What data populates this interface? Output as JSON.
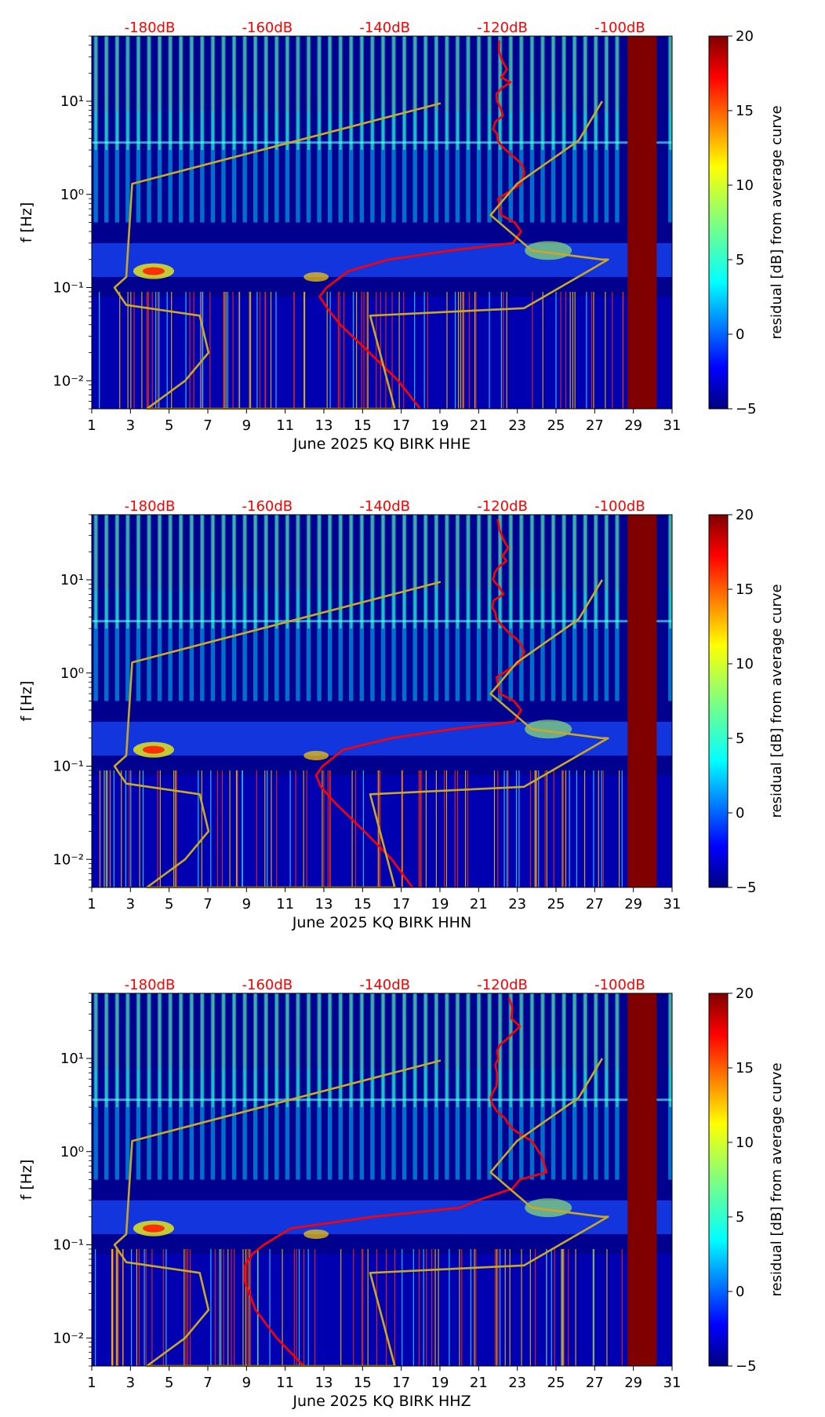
{
  "colors": {
    "psd_curve": "#ff0000",
    "reference_curve": "#c8a82a",
    "db_scale_text": "#ff0000",
    "gap_fill": "#800000"
  },
  "colorbar": {
    "label": "residual [dB] from average curve",
    "ticks": [
      20,
      15,
      10,
      5,
      0,
      -5
    ],
    "tick_labels": [
      "20",
      "15",
      "10",
      "5",
      "0",
      "−5"
    ],
    "range": [
      -5,
      20
    ],
    "colormap": "jet"
  },
  "panels": [
    {
      "xlabel": "June 2025 KQ BIRK  HHE",
      "ylabel": "f [Hz]",
      "x_ticks": [
        "1",
        "3",
        "5",
        "7",
        "9",
        "11",
        "13",
        "15",
        "17",
        "19",
        "21",
        "23",
        "25",
        "27",
        "29",
        "31"
      ],
      "y_tick_labels": [
        "10¹",
        "10⁰",
        "10⁻¹",
        "10⁻²"
      ],
      "db_labels": [
        "-180dB",
        "-160dB",
        "-140dB",
        "-120dB",
        "-100dB"
      ]
    },
    {
      "xlabel": "June 2025 KQ BIRK  HHN",
      "ylabel": "f [Hz]",
      "x_ticks": [
        "1",
        "3",
        "5",
        "7",
        "9",
        "11",
        "13",
        "15",
        "17",
        "19",
        "21",
        "23",
        "25",
        "27",
        "29",
        "31"
      ],
      "y_tick_labels": [
        "10¹",
        "10⁰",
        "10⁻¹",
        "10⁻²"
      ],
      "db_labels": [
        "-180dB",
        "-160dB",
        "-140dB",
        "-120dB",
        "-100dB"
      ]
    },
    {
      "xlabel": "June 2025 KQ BIRK  HHZ",
      "ylabel": "f [Hz]",
      "x_ticks": [
        "1",
        "3",
        "5",
        "7",
        "9",
        "11",
        "13",
        "15",
        "17",
        "19",
        "21",
        "23",
        "25",
        "27",
        "29",
        "31"
      ],
      "y_tick_labels": [
        "10¹",
        "10⁰",
        "10⁻¹",
        "10⁻²"
      ],
      "db_labels": [
        "-180dB",
        "-160dB",
        "-140dB",
        "-120dB",
        "-100dB"
      ]
    }
  ],
  "chart_data": [
    {
      "type": "heatmap",
      "title": "",
      "xlabel": "June 2025 KQ BIRK  HHE",
      "ylabel": "f [Hz]",
      "x_range_days": [
        1,
        31
      ],
      "y_range_hz": [
        0.005,
        50
      ],
      "y_scale": "log",
      "color_range_db": [
        -5,
        20
      ],
      "data_gap_days": [
        28.7,
        30.2
      ],
      "top_axis_db_labels": [
        "-180dB",
        "-160dB",
        "-140dB",
        "-120dB",
        "-100dB"
      ],
      "top_axis_db_values": [
        -180,
        -160,
        -140,
        -120,
        -100
      ],
      "psd_curve_red": {
        "db": [
          -120.5,
          -120.6,
          -120.0,
          -119.2,
          -120.2,
          -118.6,
          -120.0,
          -121.0,
          -120.9,
          -120.3,
          -119.9,
          -121.2,
          -121.6,
          -120.9,
          -120.8,
          -119.9,
          -118.6,
          -117.3,
          -116.5,
          -116.3,
          -116.8,
          -120.7,
          -120.2,
          -117.9,
          -116.8,
          -118.2,
          -128.7,
          -139.3,
          -146.2,
          -149.9,
          -151.1,
          -149.8,
          -147.6,
          -142.6,
          -137.7,
          -134.0
        ],
        "freq_hz": [
          45,
          35,
          27,
          22,
          18,
          16,
          14,
          12,
          10,
          8.5,
          7,
          6,
          5,
          4.5,
          3.8,
          3.2,
          2.7,
          2.3,
          2.0,
          1.7,
          1.3,
          0.9,
          0.6,
          0.5,
          0.4,
          0.3,
          0.25,
          0.2,
          0.15,
          0.1,
          0.08,
          0.06,
          0.04,
          0.02,
          0.01,
          0.005
        ]
      },
      "reference_curve_yellow": {
        "db": [
          -103.0,
          -107.0,
          -117.5,
          -122.0,
          -115.0,
          -103.0,
          -102.0,
          -116.3,
          -142.5,
          -138.3,
          -180.5,
          -174.0,
          -170.0,
          -171.5,
          -184.0,
          -186.0,
          -184.0,
          -183.0,
          -130.5
        ],
        "freq_hz": [
          10,
          3.8,
          1.3,
          0.6,
          0.25,
          0.2,
          0.2,
          0.06,
          0.05,
          0.005,
          0.005,
          0.01,
          0.02,
          0.05,
          0.065,
          0.1,
          0.13,
          1.3,
          9.5
        ]
      }
    },
    {
      "type": "heatmap",
      "title": "",
      "xlabel": "June 2025 KQ BIRK  HHN",
      "ylabel": "f [Hz]",
      "x_range_days": [
        1,
        31
      ],
      "y_range_hz": [
        0.005,
        50
      ],
      "y_scale": "log",
      "color_range_db": [
        -5,
        20
      ],
      "data_gap_days": [
        28.7,
        30.2
      ],
      "top_axis_db_labels": [
        "-180dB",
        "-160dB",
        "-140dB",
        "-120dB",
        "-100dB"
      ],
      "top_axis_db_values": [
        -180,
        -160,
        -140,
        -120,
        -100
      ],
      "psd_curve_red": {
        "db": [
          -120.8,
          -120.5,
          -119.8,
          -119.0,
          -120.0,
          -119.3,
          -120.5,
          -121.3,
          -121.6,
          -120.6,
          -119.8,
          -121.5,
          -121.7,
          -121.2,
          -121.0,
          -120.0,
          -118.9,
          -117.5,
          -116.8,
          -116.3,
          -117.0,
          -121.0,
          -120.4,
          -118.0,
          -116.8,
          -118.0,
          -128.4,
          -138.9,
          -147.1,
          -150.6,
          -151.7,
          -150.9,
          -148.4,
          -143.5,
          -138.8,
          -135.3
        ],
        "freq_hz": [
          45,
          35,
          27,
          22,
          18,
          16,
          14,
          12,
          10,
          8.5,
          7,
          6,
          5,
          4.5,
          3.8,
          3.2,
          2.7,
          2.3,
          2.0,
          1.7,
          1.3,
          0.9,
          0.6,
          0.5,
          0.4,
          0.3,
          0.25,
          0.2,
          0.15,
          0.1,
          0.08,
          0.06,
          0.04,
          0.02,
          0.01,
          0.005
        ]
      },
      "reference_curve_yellow": {
        "db": [
          -103.0,
          -107.0,
          -117.5,
          -122.0,
          -115.0,
          -103.0,
          -102.0,
          -116.3,
          -142.5,
          -138.3,
          -180.5,
          -174.0,
          -170.0,
          -171.5,
          -184.0,
          -186.0,
          -184.0,
          -183.0,
          -130.5
        ],
        "freq_hz": [
          10,
          3.8,
          1.3,
          0.6,
          0.25,
          0.2,
          0.2,
          0.06,
          0.05,
          0.005,
          0.005,
          0.01,
          0.02,
          0.05,
          0.065,
          0.1,
          0.13,
          1.3,
          9.5
        ]
      }
    },
    {
      "type": "heatmap",
      "title": "",
      "xlabel": "June 2025 KQ BIRK  HHZ",
      "ylabel": "f [Hz]",
      "x_range_days": [
        1,
        31
      ],
      "y_range_hz": [
        0.005,
        50
      ],
      "y_scale": "log",
      "color_range_db": [
        -5,
        20
      ],
      "data_gap_days": [
        28.7,
        30.2
      ],
      "top_axis_db_labels": [
        "-180dB",
        "-160dB",
        "-140dB",
        "-120dB",
        "-100dB"
      ],
      "top_axis_db_values": [
        -180,
        -160,
        -140,
        -120,
        -100
      ],
      "psd_curve_red": {
        "db": [
          -118.9,
          -118.3,
          -118.5,
          -117.0,
          -118.5,
          -119.3,
          -120.4,
          -120.9,
          -120.7,
          -121.2,
          -120.9,
          -120.9,
          -121.0,
          -121.5,
          -122.0,
          -121.7,
          -120.9,
          -119.6,
          -119.0,
          -118.0,
          -115.0,
          -113.3,
          -112.5,
          -117.0,
          -118.3,
          -124.2,
          -127.2,
          -142.0,
          -156.0,
          -160.6,
          -162.5,
          -163.8,
          -163.8,
          -162.0,
          -158.4,
          -153.8
        ],
        "freq_hz": [
          45,
          35,
          27,
          22,
          18,
          16,
          14,
          12,
          10,
          8.5,
          7,
          6,
          5,
          4.5,
          3.8,
          3.2,
          2.7,
          2.3,
          2.0,
          1.7,
          1.3,
          0.9,
          0.6,
          0.5,
          0.4,
          0.3,
          0.25,
          0.2,
          0.15,
          0.1,
          0.08,
          0.06,
          0.04,
          0.02,
          0.01,
          0.005
        ]
      },
      "reference_curve_yellow": {
        "db": [
          -103.0,
          -107.0,
          -117.5,
          -122.0,
          -115.0,
          -103.0,
          -102.0,
          -116.3,
          -142.5,
          -138.3,
          -180.5,
          -174.0,
          -170.0,
          -171.5,
          -184.0,
          -186.0,
          -184.0,
          -183.0,
          -130.5
        ],
        "freq_hz": [
          10,
          3.8,
          1.3,
          0.6,
          0.25,
          0.2,
          0.2,
          0.06,
          0.05,
          0.005,
          0.005,
          0.01,
          0.02,
          0.05,
          0.065,
          0.1,
          0.13,
          1.3,
          9.5
        ]
      }
    }
  ]
}
